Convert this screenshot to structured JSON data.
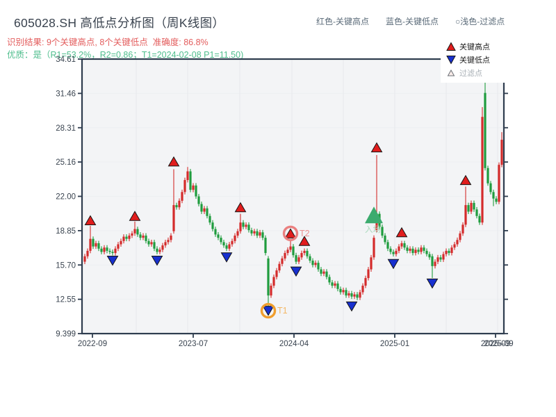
{
  "header": {
    "title": "605028.SH 高低点分析图（周K线图）",
    "result_line": "识别结果: 9个关键高点, 8个关键低点  准确度: 86.8%",
    "quality_line": "优质：是（R1=53.2%，R2=0.86；T1=2024-02-08 P1=11.50)",
    "legend_note": [
      "红色-关键高点",
      "蓝色-关键低点",
      "○浅色-过滤点"
    ]
  },
  "legend": {
    "items": [
      {
        "label": "关键高点",
        "marker": "red-up-triangle"
      },
      {
        "label": "关键低点",
        "marker": "blue-down-triangle"
      },
      {
        "label": "过滤点",
        "marker": "light-up-triangle"
      }
    ]
  },
  "colors": {
    "up": "#d42b2b",
    "down": "#1f9c3e",
    "key_high_marker": "#e11d1d",
    "key_low_marker": "#1730cf",
    "entry_marker": "#3cab6e",
    "axis": "#2e3c4e",
    "tick_label": "#39434f",
    "plot_bg": "#f3f4f6",
    "gridline": "#e7e9ec",
    "t1_ring": "#f09e2e",
    "t2_ring": "#ea8080"
  },
  "chart_data": {
    "type": "candlestick",
    "title": "605028.SH 高低点分析图（周K线图）",
    "x_tick_labels": [
      "2022-09",
      "2023-07",
      "2024-04",
      "2025-01",
      "2025-09"
    ],
    "x_tick_label_overlap": "2025-09",
    "y_tick_labels": [
      "34.61",
      "31.46",
      "28.31",
      "25.16",
      "22.00",
      "18.85",
      "15.70",
      "12.55",
      "9.399"
    ],
    "y_range": [
      9.399,
      34.61
    ],
    "grid": true,
    "first_open": 16.0,
    "closes": [
      16.5,
      17.0,
      18.1,
      17.4,
      17.7,
      17.2,
      16.9,
      17.3,
      17.0,
      16.9,
      16.8,
      17.2,
      17.6,
      17.9,
      18.3,
      18.1,
      18.4,
      18.6,
      19.0,
      18.5,
      18.2,
      18.4,
      17.9,
      17.6,
      17.8,
      17.2,
      16.9,
      17.1,
      17.5,
      17.8,
      18.0,
      18.4,
      21.2,
      21.0,
      21.6,
      22.4,
      23.5,
      24.3,
      22.6,
      23.0,
      22.0,
      21.3,
      20.6,
      20.9,
      20.2,
      19.6,
      19.0,
      18.5,
      18.2,
      17.8,
      17.5,
      17.2,
      17.6,
      17.9,
      18.4,
      18.8,
      19.6,
      19.2,
      19.4,
      18.9,
      18.6,
      18.8,
      18.4,
      18.7,
      18.2,
      16.8,
      12.9,
      13.8,
      14.6,
      15.2,
      15.8,
      16.3,
      16.8,
      17.1,
      17.4,
      16.6,
      16.0,
      16.4,
      16.8,
      17.0,
      16.5,
      16.1,
      15.7,
      15.9,
      15.3,
      14.9,
      15.1,
      14.6,
      14.1,
      13.8,
      14.0,
      13.5,
      13.2,
      13.4,
      12.9,
      13.1,
      12.8,
      13.0,
      12.7,
      13.2,
      13.8,
      14.5,
      15.3,
      16.4,
      18.2,
      20.4,
      19.2,
      18.4,
      17.8,
      17.2,
      16.9,
      16.7,
      17.0,
      17.4,
      17.7,
      17.3,
      17.0,
      17.2,
      16.8,
      17.1,
      16.9,
      17.3,
      17.0,
      16.7,
      16.4,
      15.6,
      16.0,
      16.4,
      16.2,
      16.7,
      17.0,
      16.8,
      17.3,
      17.6,
      18.0,
      18.6,
      19.4,
      21.2,
      20.6,
      21.4,
      20.8,
      20.2,
      19.6,
      29.3,
      24.6,
      23.2,
      22.4,
      21.8,
      21.5,
      24.9,
      27.2
    ],
    "overrides": {
      "2": {
        "h": 19.3
      },
      "18": {
        "h": 19.7
      },
      "32": {
        "o": 18.8,
        "h": 24.5
      },
      "37": {
        "h": 24.7
      },
      "56": {
        "h": 20.4
      },
      "66": {
        "o": 16.3,
        "l": 11.5
      },
      "74": {
        "h": 17.9
      },
      "105": {
        "o": 18.9,
        "h": 25.8
      },
      "125": {
        "o": 16.5,
        "l": 14.5
      },
      "137": {
        "h": 22.9
      },
      "143": {
        "o": 19.6,
        "h": 30.2
      },
      "144": {
        "o": 31.5,
        "h": 33.2
      },
      "147": {
        "l": 21.1
      },
      "150": {
        "h": 27.9
      }
    },
    "key_highs": [
      {
        "week": 2,
        "price": 19.8
      },
      {
        "week": 18,
        "price": 20.2
      },
      {
        "week": 32,
        "price": 25.2
      },
      {
        "week": 56,
        "price": 21.0
      },
      {
        "week": 74,
        "price": 18.6
      },
      {
        "week": 79,
        "price": 17.9
      },
      {
        "week": 105,
        "price": 26.5
      },
      {
        "week": 114,
        "price": 18.7
      },
      {
        "week": 137,
        "price": 23.5
      }
    ],
    "key_lows": [
      {
        "week": 10,
        "price": 16.1
      },
      {
        "week": 26,
        "price": 16.1
      },
      {
        "week": 51,
        "price": 16.4
      },
      {
        "week": 66,
        "price": 11.5
      },
      {
        "week": 76,
        "price": 15.1
      },
      {
        "week": 96,
        "price": 11.9
      },
      {
        "week": 111,
        "price": 15.8
      },
      {
        "week": 125,
        "price": 14.0
      }
    ],
    "entry_marker": {
      "label": "入场",
      "week": 104,
      "price": 20.3,
      "color": "#3cab6e",
      "text_color": "#a9d9bc"
    },
    "annotations": [
      {
        "label": "T1",
        "week": 66,
        "price": 11.5,
        "date": "2024-02-08",
        "value": "11.50",
        "ring_color": "#f09e2e",
        "text_color": "#f3b765"
      },
      {
        "label": "T2",
        "week": 74,
        "price": 18.6,
        "ring_color": "#ea8080",
        "text_color": "#ec9090"
      }
    ]
  }
}
